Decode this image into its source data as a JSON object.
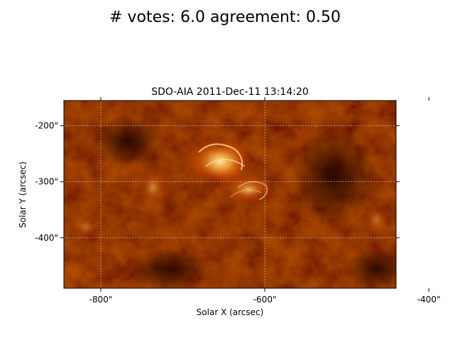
{
  "figure": {
    "suptitle": "# votes: 6.0 agreement: 0.50"
  },
  "plot": {
    "title": "SDO-AIA   2011-Dec-11 13:14:20",
    "xlabel": "Solar X (arcsec)",
    "ylabel": "Solar Y (arcsec)",
    "xlim": [
      -845,
      -440
    ],
    "ylim": [
      -490,
      -155
    ],
    "x_ticks": [
      {
        "value": -800,
        "label": "-800\""
      },
      {
        "value": -600,
        "label": "-600\""
      },
      {
        "value": -400,
        "label": "-400\""
      }
    ],
    "y_ticks": [
      {
        "value": -200,
        "label": "-200\""
      },
      {
        "value": -300,
        "label": "-300\""
      },
      {
        "value": -400,
        "label": "-400\""
      }
    ],
    "grid": true,
    "colormap": [
      "#3a0500",
      "#7a1400",
      "#b52a00",
      "#e06a10",
      "#ffc060"
    ]
  }
}
